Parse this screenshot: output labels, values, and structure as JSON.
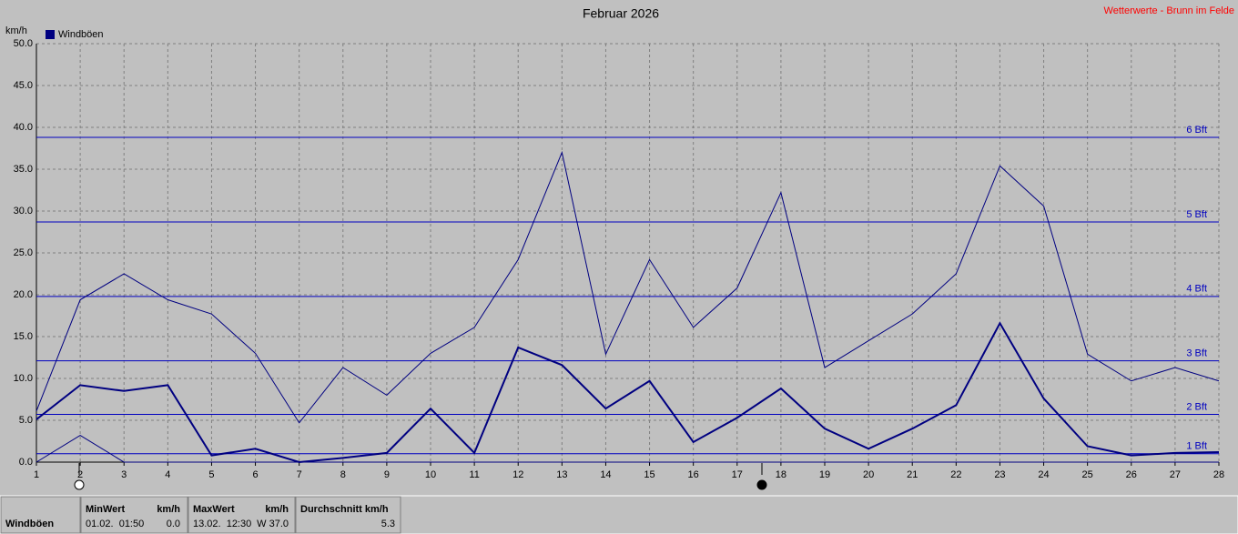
{
  "chart_data": {
    "type": "line",
    "title": "Februar 2026",
    "source": "Wetterwerte - Brunn im Felde",
    "y_label": "km/h",
    "legend": "Windböen",
    "legend_color": "#000080",
    "x": [
      1,
      2,
      3,
      4,
      5,
      6,
      7,
      8,
      9,
      10,
      11,
      12,
      13,
      14,
      15,
      16,
      17,
      18,
      19,
      20,
      21,
      22,
      23,
      24,
      25,
      26,
      27,
      28
    ],
    "series": [
      {
        "color": "#000080",
        "values": [
          6.1,
          19.4,
          22.5,
          19.4,
          17.7,
          13.0,
          4.7,
          11.3,
          8.0,
          13.0,
          16.1,
          24.2,
          37.0,
          12.9,
          24.2,
          16.1,
          20.8,
          32.2,
          11.3,
          14.5,
          17.7,
          22.5,
          35.4,
          30.6,
          12.9,
          9.7,
          11.3,
          9.7
        ]
      },
      {
        "color": "#000080",
        "values": [
          5.1,
          9.2,
          8.5,
          9.2,
          0.8,
          1.6,
          0.0,
          0.5,
          1.1,
          6.4,
          1.1,
          13.7,
          11.6,
          6.4,
          9.7,
          2.4,
          5.3,
          8.8,
          4.0,
          1.6,
          4.0,
          6.8,
          16.6,
          7.6,
          1.9,
          0.8,
          1.1,
          1.2
        ]
      },
      {
        "color": "#000080",
        "values": [
          0,
          3.2,
          0,
          0,
          0,
          0,
          0,
          0,
          0,
          0,
          0,
          0,
          0,
          0,
          0,
          0,
          0,
          0,
          0,
          0,
          0,
          0,
          0,
          0,
          0,
          0,
          0,
          0
        ]
      }
    ],
    "xlim": [
      1,
      28
    ],
    "xticks": [
      1,
      2,
      3,
      4,
      5,
      6,
      7,
      8,
      9,
      10,
      11,
      12,
      13,
      14,
      15,
      16,
      17,
      18,
      19,
      20,
      21,
      22,
      23,
      24,
      25,
      26,
      27,
      28
    ],
    "ylim": [
      0,
      50
    ],
    "yticks": [
      {
        "value": 0,
        "label": "0.0"
      },
      {
        "value": 5,
        "label": "5.0"
      },
      {
        "value": 10,
        "label": "10.0"
      },
      {
        "value": 15,
        "label": "15.0"
      },
      {
        "value": 20,
        "label": "20.0"
      },
      {
        "value": 25,
        "label": "25.0"
      },
      {
        "value": 30,
        "label": "30.0"
      },
      {
        "value": 35,
        "label": "35.0"
      },
      {
        "value": 40,
        "label": "40.0"
      },
      {
        "value": 45,
        "label": "45.0"
      },
      {
        "value": 50,
        "label": "50.0"
      }
    ],
    "grid": true,
    "reference_lines": [
      {
        "label": "1 Bft",
        "value": 1.0
      },
      {
        "label": "2 Bft",
        "value": 5.7
      },
      {
        "label": "3 Bft",
        "value": 12.1
      },
      {
        "label": "4 Bft",
        "value": 19.8
      },
      {
        "label": "5 Bft",
        "value": 28.7
      },
      {
        "label": "6 Bft",
        "value": 38.8
      }
    ]
  },
  "summary": {
    "name": "Windböen",
    "columns": [
      {
        "header": "MinWert",
        "unit": "km/h",
        "time": "01.02.  01:50",
        "value": "0.0"
      },
      {
        "header": "MaxWert",
        "unit": "km/h",
        "time": "13.02.  12:30",
        "value": "W 37.0"
      },
      {
        "header": "Durchschnitt km/h",
        "value": "5.3"
      }
    ]
  }
}
